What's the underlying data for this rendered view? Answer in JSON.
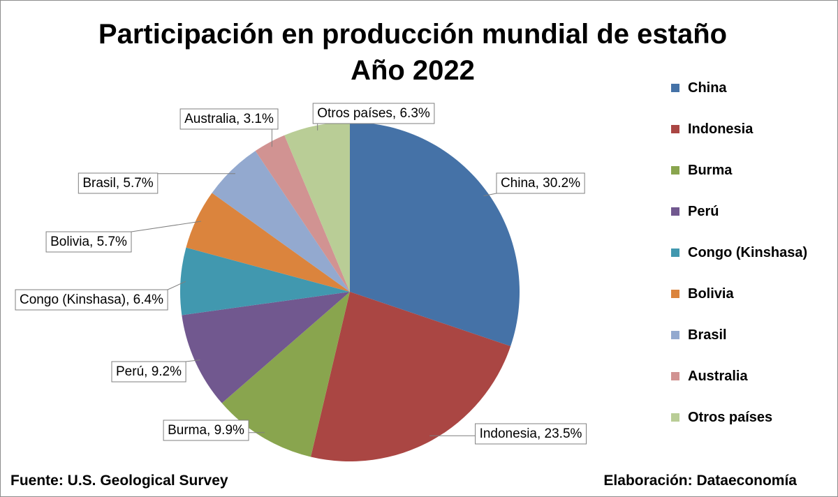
{
  "chart_data": {
    "type": "pie",
    "title": "Participación en producción mundial de estaño",
    "subtitle": "Año 2022",
    "slices": [
      {
        "name": "China",
        "value": 30.2,
        "label": "China, 30.2%",
        "color": "#4572A7"
      },
      {
        "name": "Indonesia",
        "value": 23.5,
        "label": "Indonesia, 23.5%",
        "color": "#AA4643"
      },
      {
        "name": "Burma",
        "value": 9.9,
        "label": "Burma, 9.9%",
        "color": "#89A54E"
      },
      {
        "name": "Perú",
        "value": 9.2,
        "label": "Perú, 9.2%",
        "color": "#71588F"
      },
      {
        "name": "Congo (Kinshasa)",
        "value": 6.4,
        "label": "Congo (Kinshasa), 6.4%",
        "color": "#4198AF"
      },
      {
        "name": "Bolivia",
        "value": 5.7,
        "label": "Bolivia, 5.7%",
        "color": "#DB843D"
      },
      {
        "name": "Brasil",
        "value": 5.7,
        "label": "Brasil, 5.7%",
        "color": "#93A9CF"
      },
      {
        "name": "Australia",
        "value": 3.1,
        "label": "Australia, 3.1%",
        "color": "#D19392"
      },
      {
        "name": "Otros países",
        "value": 6.3,
        "label": "Otros países, 6.3%",
        "color": "#B9CD96"
      }
    ],
    "legend_position": "right"
  },
  "footer": {
    "source": "Fuente: U.S. Geological Survey",
    "credit": "Elaboración: Dataeconomía"
  }
}
